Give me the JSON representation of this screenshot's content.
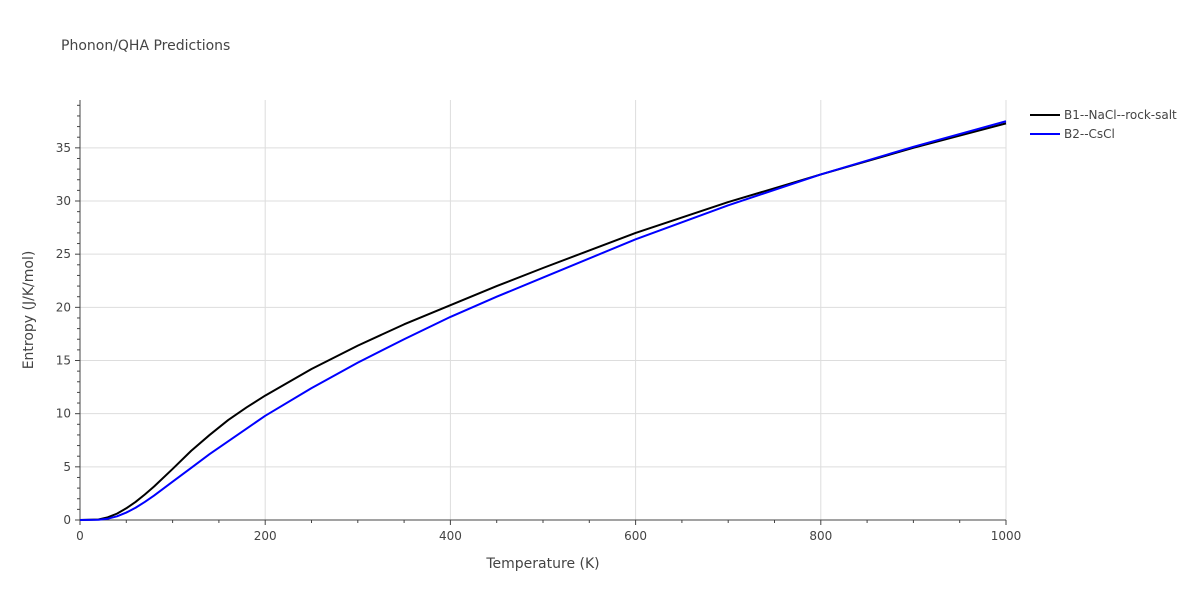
{
  "chart_data": {
    "type": "line",
    "title": "Phonon/QHA Predictions",
    "xlabel": "Temperature (K)",
    "ylabel": "Entropy (J/K/mol)",
    "xlim": [
      0,
      1000
    ],
    "ylim": [
      0,
      39.5
    ],
    "x_ticks": [
      0,
      200,
      400,
      600,
      800,
      1000
    ],
    "y_ticks": [
      0,
      5,
      10,
      15,
      20,
      25,
      30,
      35
    ],
    "grid": true,
    "legend_position": "top-right",
    "series": [
      {
        "name": "B1--NaCl--rock-salt",
        "color": "#000000",
        "x": [
          0,
          20,
          30,
          40,
          50,
          60,
          70,
          80,
          100,
          120,
          140,
          160,
          180,
          200,
          250,
          300,
          350,
          400,
          450,
          500,
          600,
          700,
          800,
          900,
          1000
        ],
        "y": [
          0,
          0.05,
          0.25,
          0.6,
          1.1,
          1.7,
          2.4,
          3.15,
          4.8,
          6.5,
          8.0,
          9.4,
          10.6,
          11.7,
          14.2,
          16.4,
          18.4,
          20.2,
          22.0,
          23.7,
          27.0,
          29.9,
          32.5,
          35.0,
          37.3
        ]
      },
      {
        "name": "B2--CsCl",
        "color": "#0000ff",
        "x": [
          0,
          20,
          30,
          40,
          50,
          60,
          70,
          80,
          100,
          120,
          140,
          160,
          180,
          200,
          250,
          300,
          350,
          400,
          450,
          500,
          600,
          700,
          800,
          900,
          1000
        ],
        "y": [
          0,
          0.02,
          0.12,
          0.35,
          0.7,
          1.15,
          1.7,
          2.3,
          3.6,
          4.9,
          6.2,
          7.4,
          8.6,
          9.8,
          12.4,
          14.8,
          17.0,
          19.1,
          21.0,
          22.8,
          26.4,
          29.6,
          32.5,
          35.1,
          37.5
        ]
      }
    ]
  }
}
